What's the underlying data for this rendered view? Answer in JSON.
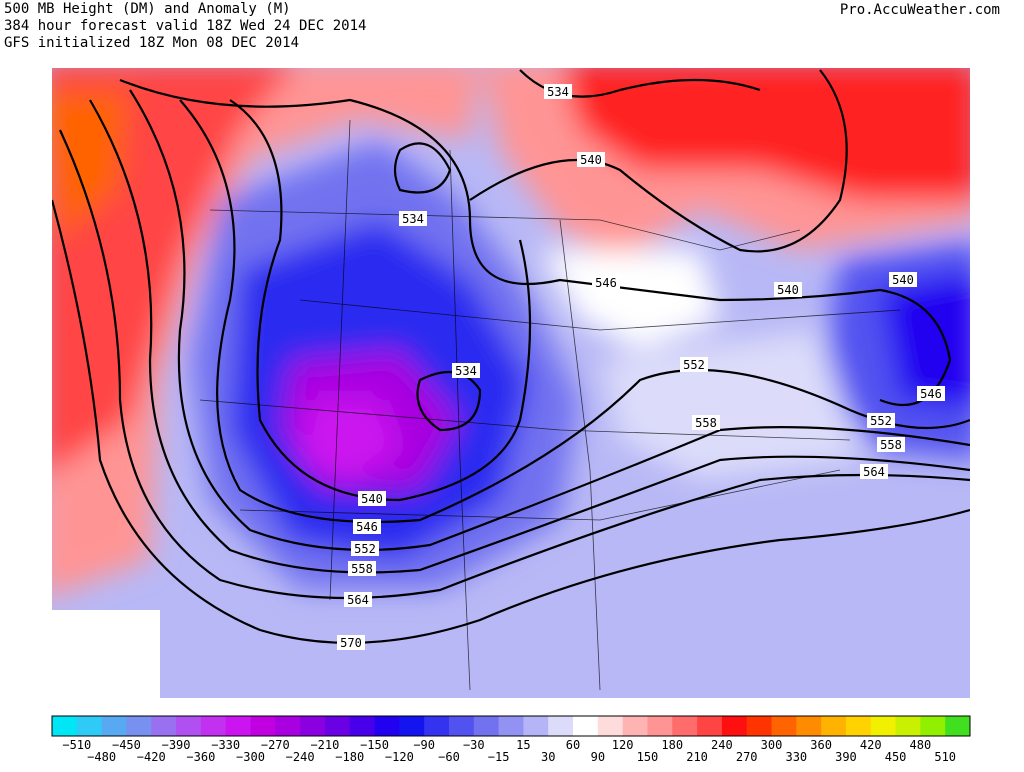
{
  "header": {
    "lines": [
      "500 MB Height (DM) and Anomaly (M)",
      "384 hour forecast valid 18Z Wed 24 DEC 2014",
      "GFS initialized 18Z Mon 08 DEC 2014"
    ],
    "source": "Pro.AccuWeather.com"
  },
  "contour_labels": [
    "534",
    "540",
    "534",
    "546",
    "540",
    "540",
    "534",
    "552",
    "546",
    "558",
    "552",
    "558",
    "564",
    "540",
    "546",
    "552",
    "558",
    "564",
    "570"
  ],
  "colorbar": {
    "labels": [
      "−510",
      "−480",
      "−450",
      "−420",
      "−390",
      "−360",
      "−330",
      "−300",
      "−270",
      "−240",
      "−210",
      "−180",
      "−150",
      "−120",
      "−90",
      "−60",
      "−30",
      "−15",
      "15",
      "30",
      "60",
      "90",
      "120",
      "150",
      "180",
      "210",
      "240",
      "270",
      "300",
      "330",
      "360",
      "390",
      "420",
      "450",
      "480",
      "510"
    ],
    "colors": [
      "#00e6f5",
      "#2fcaf5",
      "#57aaf2",
      "#7890f0",
      "#9870f0",
      "#b050f0",
      "#c230f0",
      "#cc14f0",
      "#c000e0",
      "#a800e0",
      "#8a00e0",
      "#6a00e4",
      "#4800ea",
      "#2200f0",
      "#1414f0",
      "#3434f0",
      "#5252f0",
      "#7272f0",
      "#9292f2",
      "#b4b4f6",
      "#dcdcfa",
      "#ffffff",
      "#ffdcdc",
      "#ffb4b4",
      "#ff9494",
      "#ff6c6c",
      "#ff4444",
      "#ff1010",
      "#ff3400",
      "#ff6400",
      "#ff8c00",
      "#ffb200",
      "#ffd200",
      "#f0f000",
      "#c8f000",
      "#90f000",
      "#40e020"
    ]
  }
}
